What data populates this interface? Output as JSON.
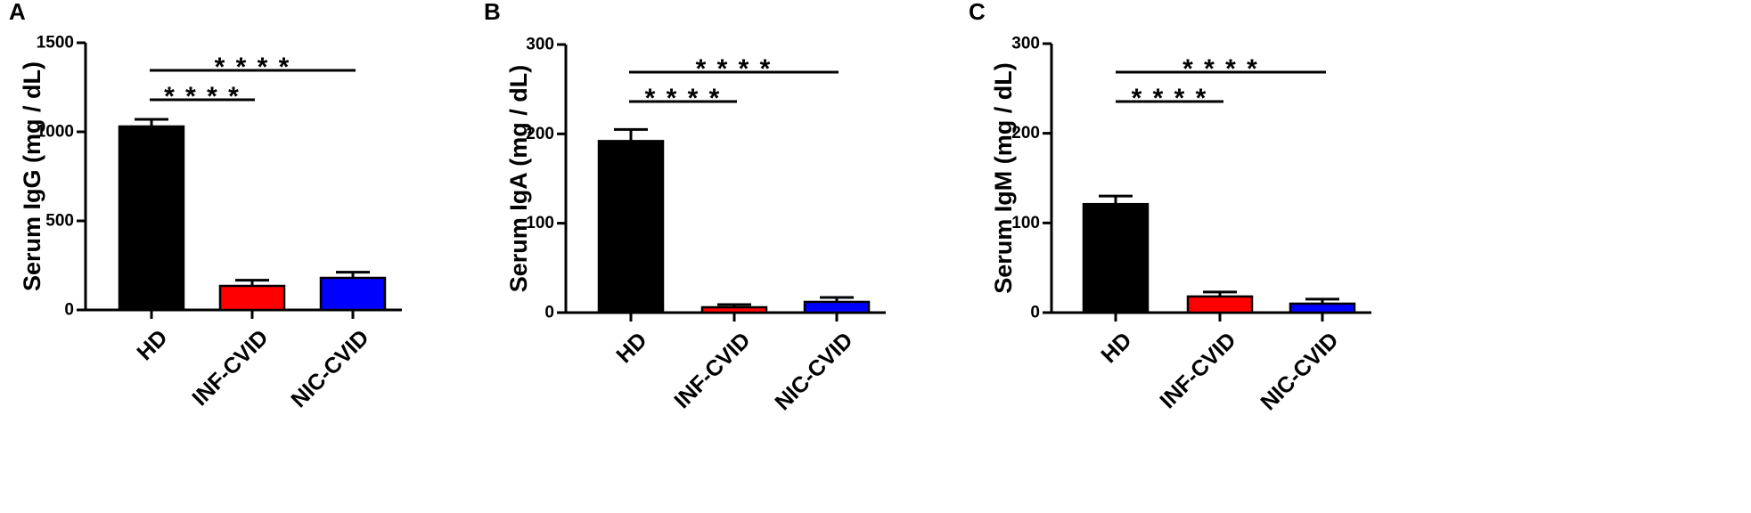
{
  "colors": {
    "HD": "#000000",
    "INF-CVID": "#ff0000",
    "NIC-CVID": "#0000ff"
  },
  "chart_data": [
    {
      "type": "bar",
      "panel_label": "A",
      "ylabel": "Serum IgG (mg / dL)",
      "categories": [
        "HD",
        "INF-CVID",
        "NIC-CVID"
      ],
      "values": [
        1030,
        135,
        180
      ],
      "error": [
        40,
        32,
        32
      ],
      "ylim": [
        0,
        1500
      ],
      "yticks": [
        0,
        500,
        1000,
        1500
      ],
      "significance": [
        {
          "from": "HD",
          "to": "INF-CVID",
          "label": "* * * *"
        },
        {
          "from": "HD",
          "to": "NIC-CVID",
          "label": "* * * *"
        }
      ]
    },
    {
      "type": "bar",
      "panel_label": "B",
      "ylabel": "Serum IgA (mg / dL)",
      "categories": [
        "HD",
        "INF-CVID",
        "NIC-CVID"
      ],
      "values": [
        192,
        6,
        12
      ],
      "error": [
        13,
        3,
        5
      ],
      "ylim": [
        0,
        300
      ],
      "yticks": [
        0,
        100,
        200,
        300
      ],
      "significance": [
        {
          "from": "HD",
          "to": "INF-CVID",
          "label": "* * * *"
        },
        {
          "from": "HD",
          "to": "NIC-CVID",
          "label": "* * * *"
        }
      ]
    },
    {
      "type": "bar",
      "panel_label": "C",
      "ylabel": "Serum IgM (mg / dL)",
      "categories": [
        "HD",
        "INF-CVID",
        "NIC-CVID"
      ],
      "values": [
        121,
        18,
        10
      ],
      "error": [
        9,
        5,
        5
      ],
      "ylim": [
        0,
        300
      ],
      "yticks": [
        0,
        100,
        200,
        300
      ],
      "significance": [
        {
          "from": "HD",
          "to": "INF-CVID",
          "label": "* * * *"
        },
        {
          "from": "HD",
          "to": "NIC-CVID",
          "label": "* * * *"
        }
      ]
    }
  ]
}
